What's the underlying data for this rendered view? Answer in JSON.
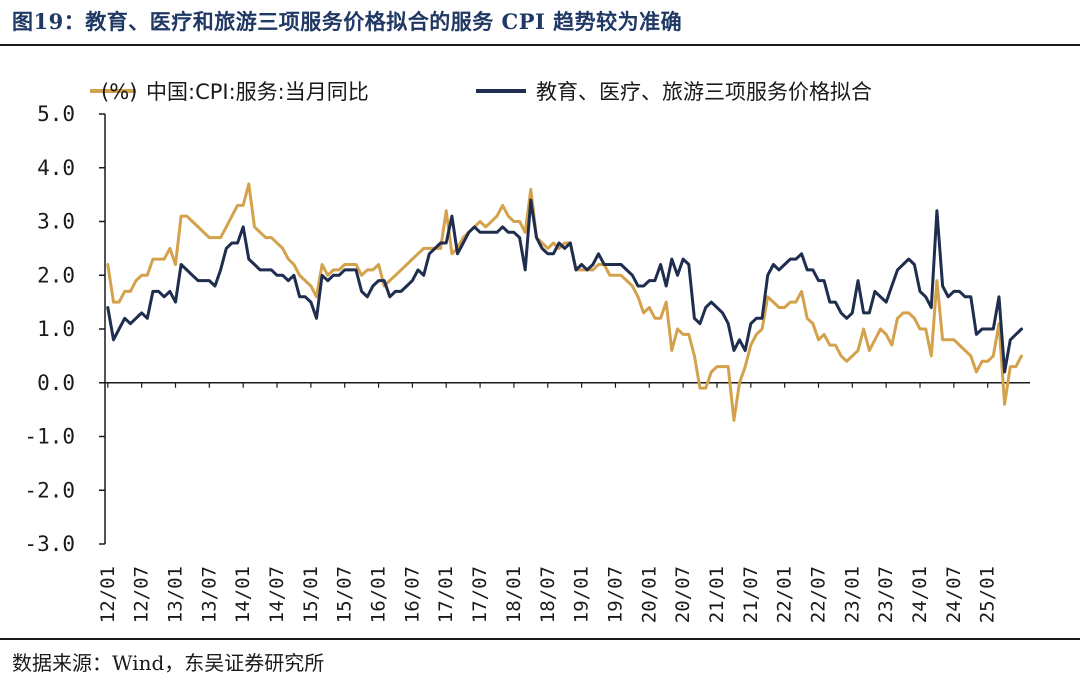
{
  "figure": {
    "title": "图19：教育、医疗和旅游三项服务价格拟合的服务 CPI 趋势较为准确",
    "source": "数据来源：Wind，东吴证券研究所"
  },
  "chart_data": {
    "type": "line",
    "unit_label": "(%)",
    "ylim": [
      -3.0,
      5.0
    ],
    "yticks": [
      "5.0",
      "4.0",
      "3.0",
      "2.0",
      "1.0",
      "0.0",
      "-1.0",
      "-2.0",
      "-3.0"
    ],
    "xticks": [
      "12/01",
      "12/07",
      "13/01",
      "13/07",
      "14/01",
      "14/07",
      "15/01",
      "15/07",
      "16/01",
      "16/07",
      "17/01",
      "17/07",
      "18/01",
      "18/07",
      "19/01",
      "19/07",
      "20/01",
      "20/07",
      "21/01",
      "21/07",
      "22/01",
      "22/07",
      "23/01",
      "23/07",
      "24/01",
      "24/07",
      "25/01"
    ],
    "x_start": "2012-01",
    "grid": false,
    "legend_position": "top",
    "series": [
      {
        "name": "中国:CPI:服务:当月同比",
        "color": "#d4a24c",
        "values": [
          2.2,
          1.5,
          1.5,
          1.7,
          1.7,
          1.9,
          2.0,
          2.0,
          2.3,
          2.3,
          2.3,
          2.5,
          2.2,
          3.1,
          3.1,
          3.0,
          2.9,
          2.8,
          2.7,
          2.7,
          2.7,
          2.9,
          3.1,
          3.3,
          3.3,
          3.7,
          2.9,
          2.8,
          2.7,
          2.7,
          2.6,
          2.5,
          2.3,
          2.2,
          2.0,
          1.9,
          1.8,
          1.6,
          2.2,
          2.0,
          2.1,
          2.1,
          2.2,
          2.2,
          2.2,
          2.0,
          2.1,
          2.1,
          2.2,
          1.8,
          1.9,
          2.0,
          2.1,
          2.2,
          2.3,
          2.4,
          2.5,
          2.5,
          2.5,
          2.5,
          3.2,
          2.4,
          2.5,
          2.7,
          2.8,
          2.9,
          3.0,
          2.9,
          3.0,
          3.1,
          3.3,
          3.1,
          3.0,
          3.0,
          2.8,
          3.6,
          2.7,
          2.6,
          2.5,
          2.6,
          2.5,
          2.6,
          2.6,
          2.1,
          2.1,
          2.1,
          2.1,
          2.2,
          2.2,
          2.0,
          2.0,
          2.0,
          1.9,
          1.8,
          1.6,
          1.3,
          1.4,
          1.2,
          1.2,
          1.5,
          0.6,
          1.0,
          0.9,
          0.9,
          0.5,
          -0.1,
          -0.1,
          0.2,
          0.3,
          0.3,
          0.3,
          -0.7,
          0.0,
          0.3,
          0.7,
          0.9,
          1.0,
          1.6,
          1.5,
          1.4,
          1.4,
          1.5,
          1.5,
          1.7,
          1.2,
          1.1,
          0.8,
          0.9,
          0.7,
          0.7,
          0.5,
          0.4,
          0.5,
          0.6,
          1.0,
          0.6,
          0.8,
          1.0,
          0.9,
          0.7,
          1.2,
          1.3,
          1.3,
          1.2,
          1.0,
          1.0,
          0.5,
          1.9,
          0.8,
          0.8,
          0.8,
          0.7,
          0.6,
          0.5,
          0.2,
          0.4,
          0.4,
          0.5,
          1.1,
          -0.4,
          0.3,
          0.3,
          0.5
        ]
      },
      {
        "name": "教育、医疗、旅游三项服务价格拟合",
        "color": "#1f2d4e",
        "values": [
          1.4,
          0.8,
          1.0,
          1.2,
          1.1,
          1.2,
          1.3,
          1.2,
          1.7,
          1.7,
          1.6,
          1.7,
          1.5,
          2.2,
          2.1,
          2.0,
          1.9,
          1.9,
          1.9,
          1.8,
          2.1,
          2.5,
          2.6,
          2.6,
          2.9,
          2.3,
          2.2,
          2.1,
          2.1,
          2.1,
          2.0,
          2.0,
          1.9,
          2.0,
          1.6,
          1.6,
          1.5,
          1.2,
          2.0,
          1.9,
          2.0,
          2.0,
          2.1,
          2.1,
          2.1,
          1.7,
          1.6,
          1.8,
          1.9,
          1.9,
          1.6,
          1.7,
          1.7,
          1.8,
          1.9,
          2.1,
          2.0,
          2.4,
          2.5,
          2.6,
          2.6,
          3.1,
          2.4,
          2.6,
          2.8,
          2.9,
          2.8,
          2.8,
          2.8,
          2.8,
          2.9,
          2.8,
          2.8,
          2.7,
          2.1,
          3.4,
          2.7,
          2.5,
          2.4,
          2.4,
          2.6,
          2.5,
          2.6,
          2.1,
          2.2,
          2.1,
          2.2,
          2.4,
          2.2,
          2.2,
          2.2,
          2.2,
          2.1,
          2.0,
          1.8,
          1.8,
          1.9,
          1.9,
          2.2,
          1.8,
          2.3,
          2.0,
          2.3,
          2.2,
          1.2,
          1.1,
          1.4,
          1.5,
          1.4,
          1.3,
          1.1,
          0.6,
          0.8,
          0.6,
          1.1,
          1.2,
          1.2,
          2.0,
          2.2,
          2.1,
          2.2,
          2.3,
          2.3,
          2.4,
          2.1,
          2.1,
          1.9,
          1.9,
          1.5,
          1.5,
          1.3,
          1.2,
          1.3,
          1.9,
          1.3,
          1.3,
          1.7,
          1.6,
          1.5,
          1.8,
          2.1,
          2.2,
          2.3,
          2.2,
          1.7,
          1.6,
          1.4,
          3.2,
          1.8,
          1.6,
          1.7,
          1.7,
          1.6,
          1.6,
          0.9,
          1.0,
          1.0,
          1.0,
          1.6,
          0.2,
          0.8,
          0.9,
          1.0
        ]
      }
    ]
  }
}
